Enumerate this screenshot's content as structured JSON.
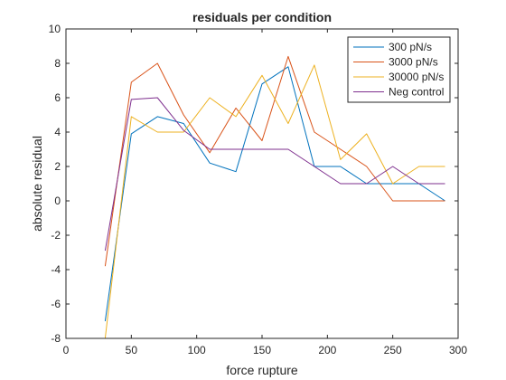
{
  "chart_data": {
    "type": "line",
    "title": "residuals per condition",
    "xlabel": "force rupture",
    "ylabel": "absolute residual",
    "xlim": [
      0,
      300
    ],
    "ylim": [
      -8,
      10
    ],
    "xticks": [
      0,
      50,
      100,
      150,
      200,
      250,
      300
    ],
    "yticks": [
      -8,
      -6,
      -4,
      -2,
      0,
      2,
      4,
      6,
      8,
      10
    ],
    "grid": false,
    "legend_position": "top-right",
    "x": [
      30,
      50,
      70,
      90,
      110,
      130,
      150,
      170,
      190,
      210,
      230,
      250,
      270,
      290
    ],
    "series": [
      {
        "name": "300 pN/s",
        "color": "#0072BD",
        "values": [
          -7,
          3.9,
          4.9,
          4.5,
          2.2,
          1.7,
          6.8,
          7.8,
          2,
          2,
          1,
          1,
          1,
          0
        ]
      },
      {
        "name": "3000 pN/s",
        "color": "#D95319",
        "values": [
          -3.8,
          6.9,
          8,
          5,
          2.8,
          5.4,
          3.5,
          8.4,
          4,
          3,
          2,
          0,
          0,
          0
        ]
      },
      {
        "name": "30000 pN/s",
        "color": "#EDB120",
        "values": [
          -8,
          4.9,
          4,
          4,
          6,
          4.9,
          7.3,
          4.5,
          7.9,
          2.4,
          3.9,
          1,
          2,
          2
        ]
      },
      {
        "name": "Neg control",
        "color": "#7E2F8E",
        "values": [
          -2.9,
          5.9,
          6,
          4.1,
          3,
          3,
          3,
          3,
          2,
          1,
          1,
          2,
          1,
          1
        ]
      }
    ]
  }
}
